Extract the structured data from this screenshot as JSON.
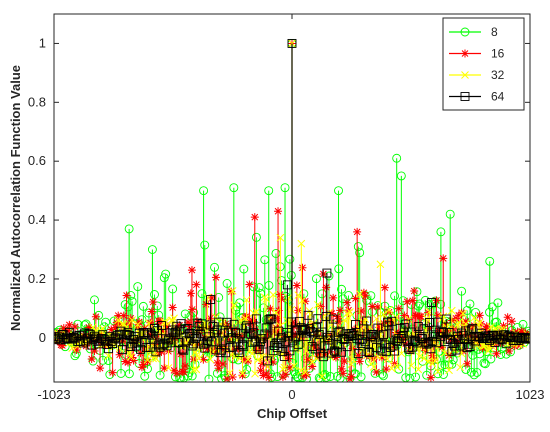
{
  "chart_data": {
    "type": "stem",
    "xlabel": "Chip Offset",
    "ylabel": "Normalized Autocorrelation Function Value",
    "xlim": [
      -1023,
      1023
    ],
    "ylim": [
      -0.15,
      1.1
    ],
    "x_ticks": [
      -1023,
      0,
      1023
    ],
    "y_ticks": [
      0,
      0.2,
      0.4,
      0.6,
      0.8,
      1
    ],
    "y_tick_labels": [
      "0",
      "0.2",
      "0.4",
      "0.6",
      "0.8",
      "1"
    ],
    "x_tick_labels": [
      "-1023",
      "0",
      "1023"
    ],
    "grid": false,
    "legend_position": "top-right",
    "series": [
      {
        "name": "8",
        "color": "#00ff00",
        "marker": "circle",
        "peak": {
          "x": 0,
          "y": 1
        },
        "notable_points": [
          [
            -380,
            0.5
          ],
          [
            -250,
            0.51
          ],
          [
            -100,
            0.5
          ],
          [
            -30,
            0.51
          ],
          [
            450,
            0.61
          ],
          [
            470,
            0.55
          ],
          [
            200,
            0.5
          ],
          [
            640,
            0.36
          ],
          [
            680,
            0.42
          ],
          [
            850,
            0.26
          ],
          [
            -700,
            0.37
          ],
          [
            -600,
            0.3
          ]
        ],
        "sidelobe_envelope": 0.45
      },
      {
        "name": "16",
        "color": "#ff0000",
        "marker": "asterisk",
        "peak": {
          "x": 0,
          "y": 1
        },
        "notable_points": [
          [
            -160,
            0.41
          ],
          [
            -60,
            0.43
          ],
          [
            280,
            0.36
          ],
          [
            650,
            0.27
          ],
          [
            -430,
            0.23
          ]
        ],
        "sidelobe_envelope": 0.3
      },
      {
        "name": "32",
        "color": "#ffff00",
        "marker": "x",
        "peak": {
          "x": 0,
          "y": 1
        },
        "notable_points": [
          [
            -50,
            0.34
          ],
          [
            40,
            0.32
          ],
          [
            380,
            0.25
          ]
        ],
        "sidelobe_envelope": 0.22
      },
      {
        "name": "64",
        "color": "#000000",
        "marker": "square",
        "peak": {
          "x": 0,
          "y": 1
        },
        "notable_points": [
          [
            -20,
            0.18
          ],
          [
            150,
            0.22
          ],
          [
            -350,
            0.13
          ],
          [
            600,
            0.12
          ]
        ],
        "sidelobe_envelope": 0.12
      }
    ]
  }
}
